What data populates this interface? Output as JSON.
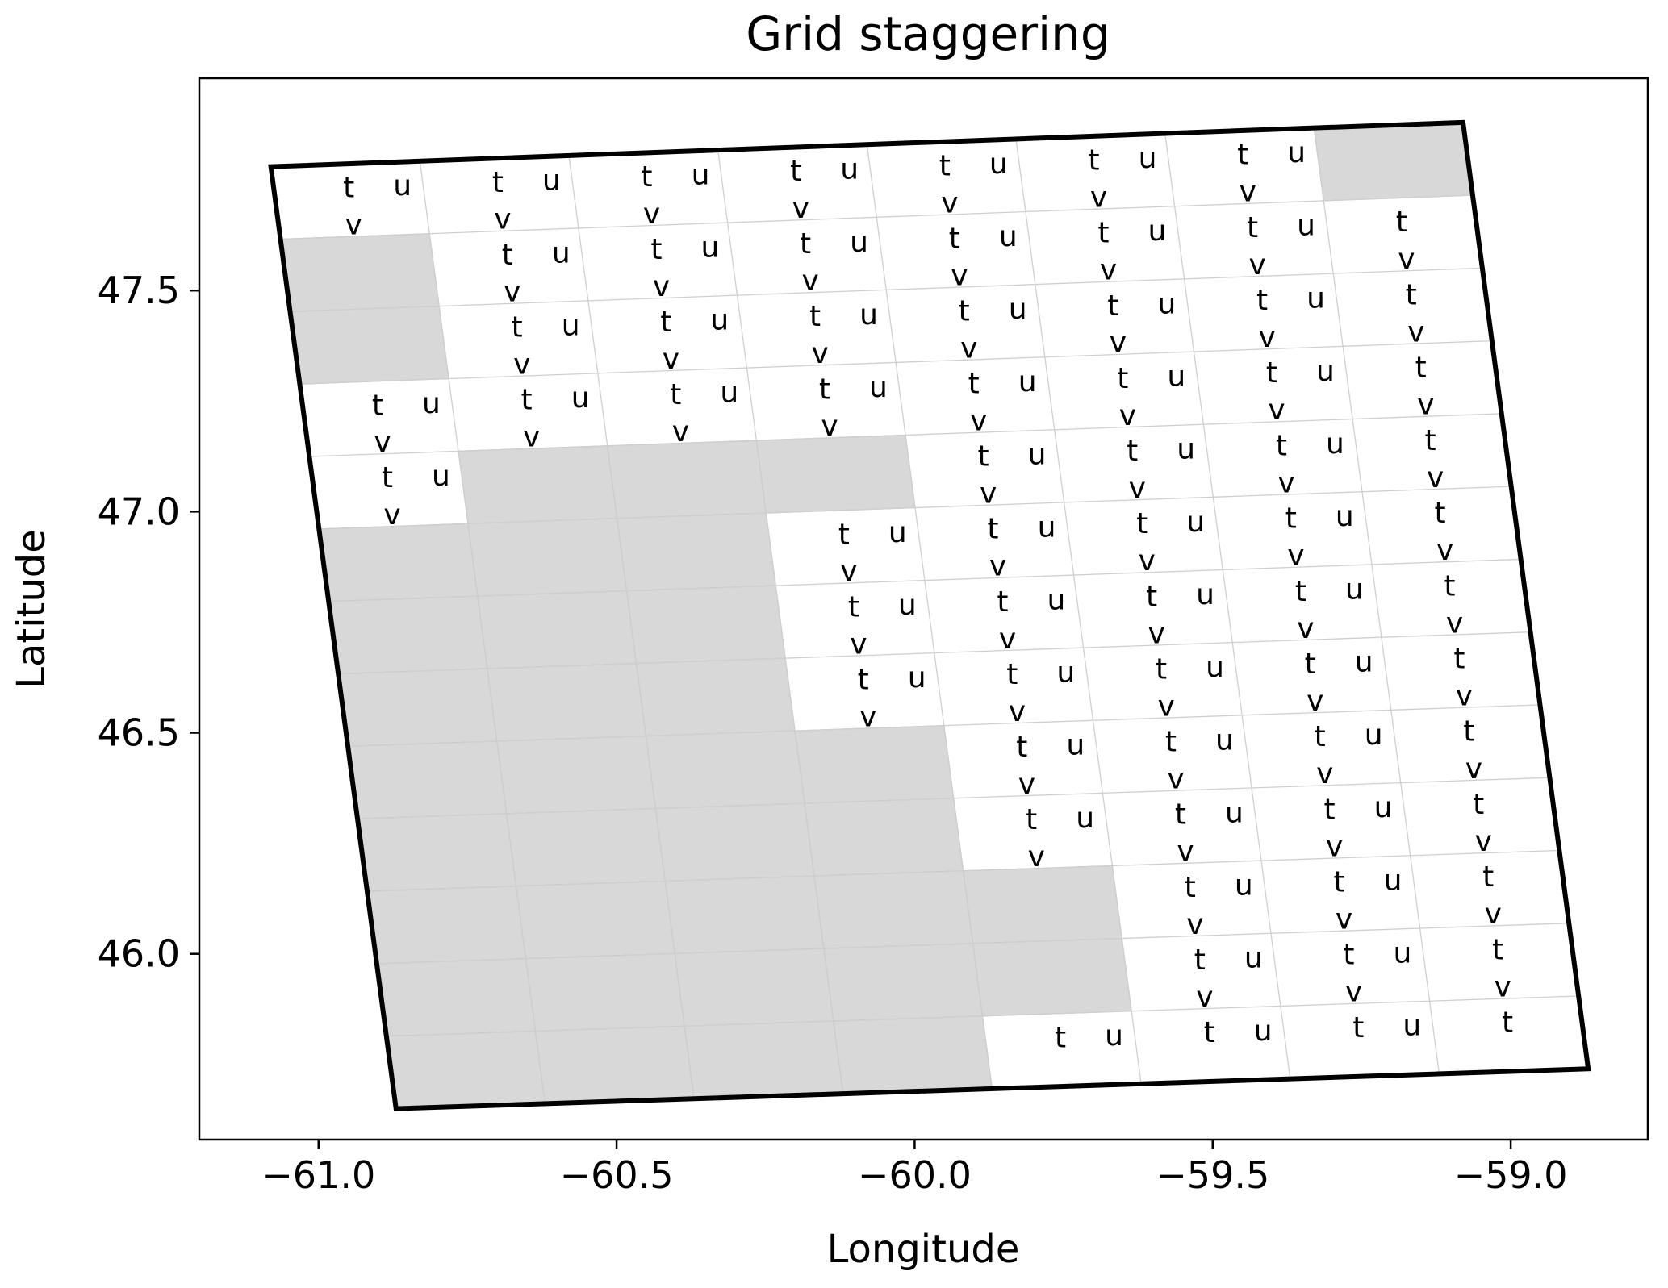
{
  "chart_data": {
    "type": "scatter",
    "title": "Grid staggering",
    "xlabel": "Longitude",
    "ylabel": "Latitude",
    "xlim": [
      -61.2,
      -58.77
    ],
    "ylim": [
      45.58,
      47.98
    ],
    "xticks": [
      -61.0,
      -60.5,
      -60.0,
      -59.5,
      -59.0
    ],
    "xtick_labels": [
      "−61.0",
      "−60.5",
      "−60.0",
      "−59.5",
      "−59.0"
    ],
    "yticks": [
      46.0,
      46.5,
      47.0,
      47.5
    ],
    "ytick_labels": [
      "46.0",
      "46.5",
      "47.0",
      "47.5"
    ],
    "grid": false,
    "legend": null,
    "colors": {
      "land": "#d8d8d8",
      "land_edge": "#bdbdbd",
      "grid_line": "#cfcfcf",
      "boundary": "#000000",
      "text": "#000000"
    },
    "domain_corners": {
      "top_left": [
        -61.08,
        47.78
      ],
      "top_right": [
        -59.08,
        47.88
      ],
      "bottom_right": [
        -58.87,
        45.74
      ],
      "bottom_left": [
        -60.87,
        45.65
      ]
    },
    "grid_columns": 8,
    "grid_rows": 13,
    "point_labels": {
      "t": "t",
      "u": "u",
      "v": "v"
    },
    "land_cells": [
      [
        1,
        0
      ],
      [
        2,
        0
      ],
      [
        4,
        1
      ],
      [
        4,
        2
      ],
      [
        4,
        3
      ],
      [
        5,
        0
      ],
      [
        5,
        1
      ],
      [
        5,
        2
      ],
      [
        6,
        0
      ],
      [
        6,
        1
      ],
      [
        6,
        2
      ],
      [
        7,
        0
      ],
      [
        7,
        1
      ],
      [
        7,
        2
      ],
      [
        8,
        0
      ],
      [
        8,
        1
      ],
      [
        8,
        2
      ],
      [
        8,
        3
      ],
      [
        9,
        0
      ],
      [
        9,
        1
      ],
      [
        9,
        2
      ],
      [
        9,
        3
      ],
      [
        10,
        0
      ],
      [
        10,
        1
      ],
      [
        10,
        2
      ],
      [
        10,
        3
      ],
      [
        10,
        4
      ],
      [
        11,
        0
      ],
      [
        11,
        1
      ],
      [
        11,
        2
      ],
      [
        11,
        3
      ],
      [
        11,
        4
      ],
      [
        12,
        0
      ],
      [
        12,
        1
      ],
      [
        12,
        2
      ],
      [
        12,
        3
      ],
      [
        0,
        7
      ]
    ]
  }
}
